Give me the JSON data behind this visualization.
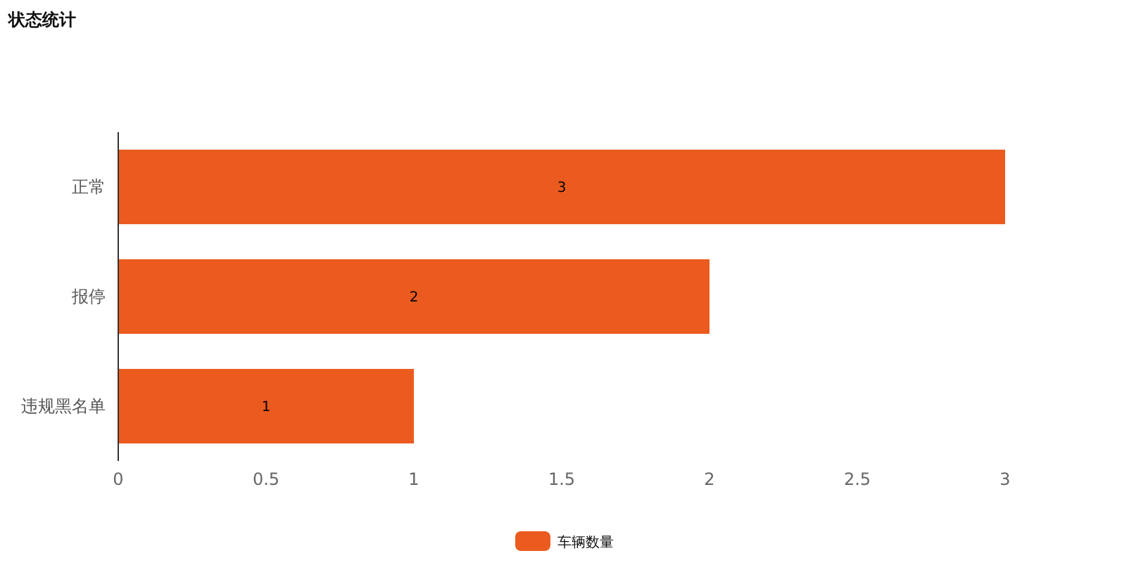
{
  "chart_data": {
    "type": "bar",
    "orientation": "horizontal",
    "title": "状态统计",
    "categories": [
      "正常",
      "报停",
      "违规黑名单"
    ],
    "series": [
      {
        "name": "车辆数量",
        "color": "#eb5b1f",
        "values": [
          3,
          2,
          1
        ]
      }
    ],
    "xlim": [
      0,
      3
    ],
    "xticks": [
      0,
      0.5,
      1,
      1.5,
      2,
      2.5,
      3
    ],
    "grid": false,
    "legend": "bottom",
    "data_labels": true
  }
}
